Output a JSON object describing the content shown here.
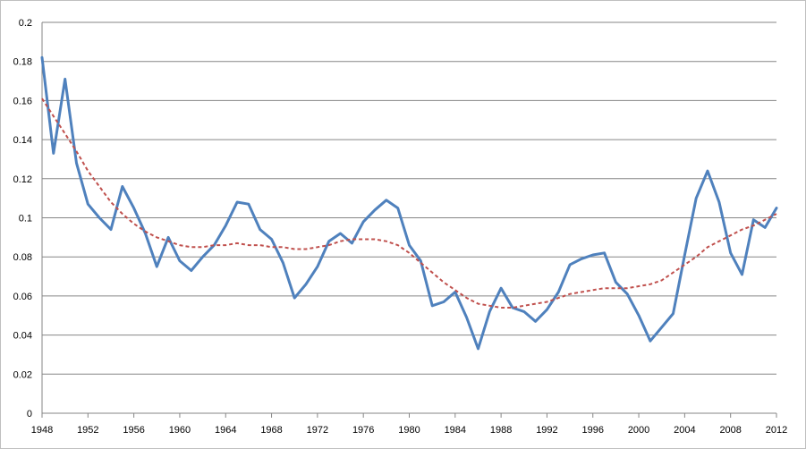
{
  "chart_data": {
    "type": "line",
    "title": "",
    "xlabel": "",
    "ylabel": "",
    "xlim": [
      1948,
      2012
    ],
    "ylim": [
      0,
      0.2
    ],
    "x_ticks": [
      1948,
      1952,
      1956,
      1960,
      1964,
      1968,
      1972,
      1976,
      1980,
      1984,
      1988,
      1992,
      1996,
      2000,
      2004,
      2008,
      2012
    ],
    "y_ticks": [
      "0",
      "0.02",
      "0.04",
      "0.06",
      "0.08",
      "0.1",
      "0.12",
      "0.14",
      "0.16",
      "0.18",
      "0.2"
    ],
    "grid": "horizontal",
    "legend": "none",
    "x": [
      1948,
      1949,
      1950,
      1951,
      1952,
      1953,
      1954,
      1955,
      1956,
      1957,
      1958,
      1959,
      1960,
      1961,
      1962,
      1963,
      1964,
      1965,
      1966,
      1967,
      1968,
      1969,
      1970,
      1971,
      1972,
      1973,
      1974,
      1975,
      1976,
      1977,
      1978,
      1979,
      1980,
      1981,
      1982,
      1983,
      1984,
      1985,
      1986,
      1987,
      1988,
      1989,
      1990,
      1991,
      1992,
      1993,
      1994,
      1995,
      1996,
      1997,
      1998,
      1999,
      2000,
      2001,
      2002,
      2003,
      2004,
      2005,
      2006,
      2007,
      2008,
      2009,
      2010,
      2011,
      2012
    ],
    "series": [
      {
        "style": "solid",
        "color": "#4f81bd",
        "values": [
          0.182,
          0.133,
          0.171,
          0.128,
          0.107,
          0.1,
          0.094,
          0.116,
          0.105,
          0.092,
          0.075,
          0.09,
          0.078,
          0.073,
          0.08,
          0.086,
          0.096,
          0.108,
          0.107,
          0.094,
          0.089,
          0.077,
          0.059,
          0.066,
          0.075,
          0.088,
          0.092,
          0.087,
          0.098,
          0.104,
          0.109,
          0.105,
          0.086,
          0.078,
          0.055,
          0.057,
          0.062,
          0.049,
          0.033,
          0.052,
          0.064,
          0.054,
          0.052,
          0.047,
          0.053,
          0.062,
          0.076,
          0.079,
          0.081,
          0.082,
          0.067,
          0.061,
          0.05,
          0.037,
          0.044,
          0.051,
          0.081,
          0.11,
          0.124,
          0.108,
          0.082,
          0.071,
          0.099,
          0.095,
          0.105
        ]
      },
      {
        "style": "dashed",
        "color": "#c0504d",
        "values": [
          0.161,
          0.152,
          0.143,
          0.134,
          0.124,
          0.116,
          0.108,
          0.102,
          0.097,
          0.093,
          0.09,
          0.088,
          0.086,
          0.085,
          0.085,
          0.086,
          0.086,
          0.087,
          0.086,
          0.086,
          0.085,
          0.085,
          0.084,
          0.084,
          0.085,
          0.086,
          0.088,
          0.089,
          0.089,
          0.089,
          0.088,
          0.086,
          0.082,
          0.077,
          0.072,
          0.067,
          0.063,
          0.059,
          0.056,
          0.055,
          0.054,
          0.054,
          0.055,
          0.056,
          0.057,
          0.059,
          0.061,
          0.062,
          0.063,
          0.064,
          0.064,
          0.064,
          0.065,
          0.066,
          0.068,
          0.072,
          0.076,
          0.08,
          0.085,
          0.088,
          0.091,
          0.094,
          0.096,
          0.099,
          0.102
        ]
      }
    ]
  }
}
